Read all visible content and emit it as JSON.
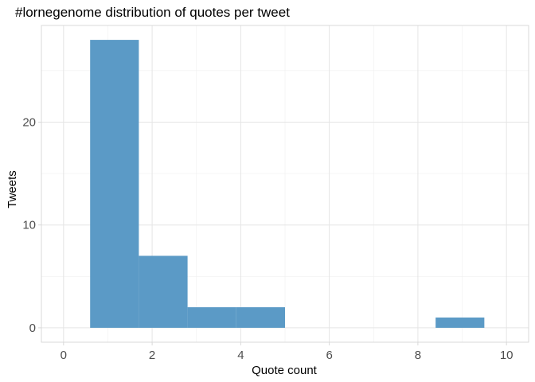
{
  "chart_data": {
    "type": "bar",
    "title": "#lornegenome distribution of quotes per tweet",
    "xlabel": "Quote count",
    "ylabel": "Tweets",
    "bars": [
      {
        "x_start": 0.6,
        "x_end": 1.7,
        "count": 28
      },
      {
        "x_start": 1.7,
        "x_end": 2.8,
        "count": 7
      },
      {
        "x_start": 2.8,
        "x_end": 3.9,
        "count": 2
      },
      {
        "x_start": 3.9,
        "x_end": 5.0,
        "count": 2
      },
      {
        "x_start": 8.4,
        "x_end": 9.5,
        "count": 1
      }
    ],
    "xlim": [
      -0.5,
      10.5
    ],
    "ylim": [
      -1.4,
      29.4
    ],
    "x_ticks": [
      0,
      2,
      4,
      6,
      8,
      10
    ],
    "y_ticks": [
      0,
      10,
      20
    ],
    "grid": true,
    "bar_color": "#5b9ac6"
  }
}
